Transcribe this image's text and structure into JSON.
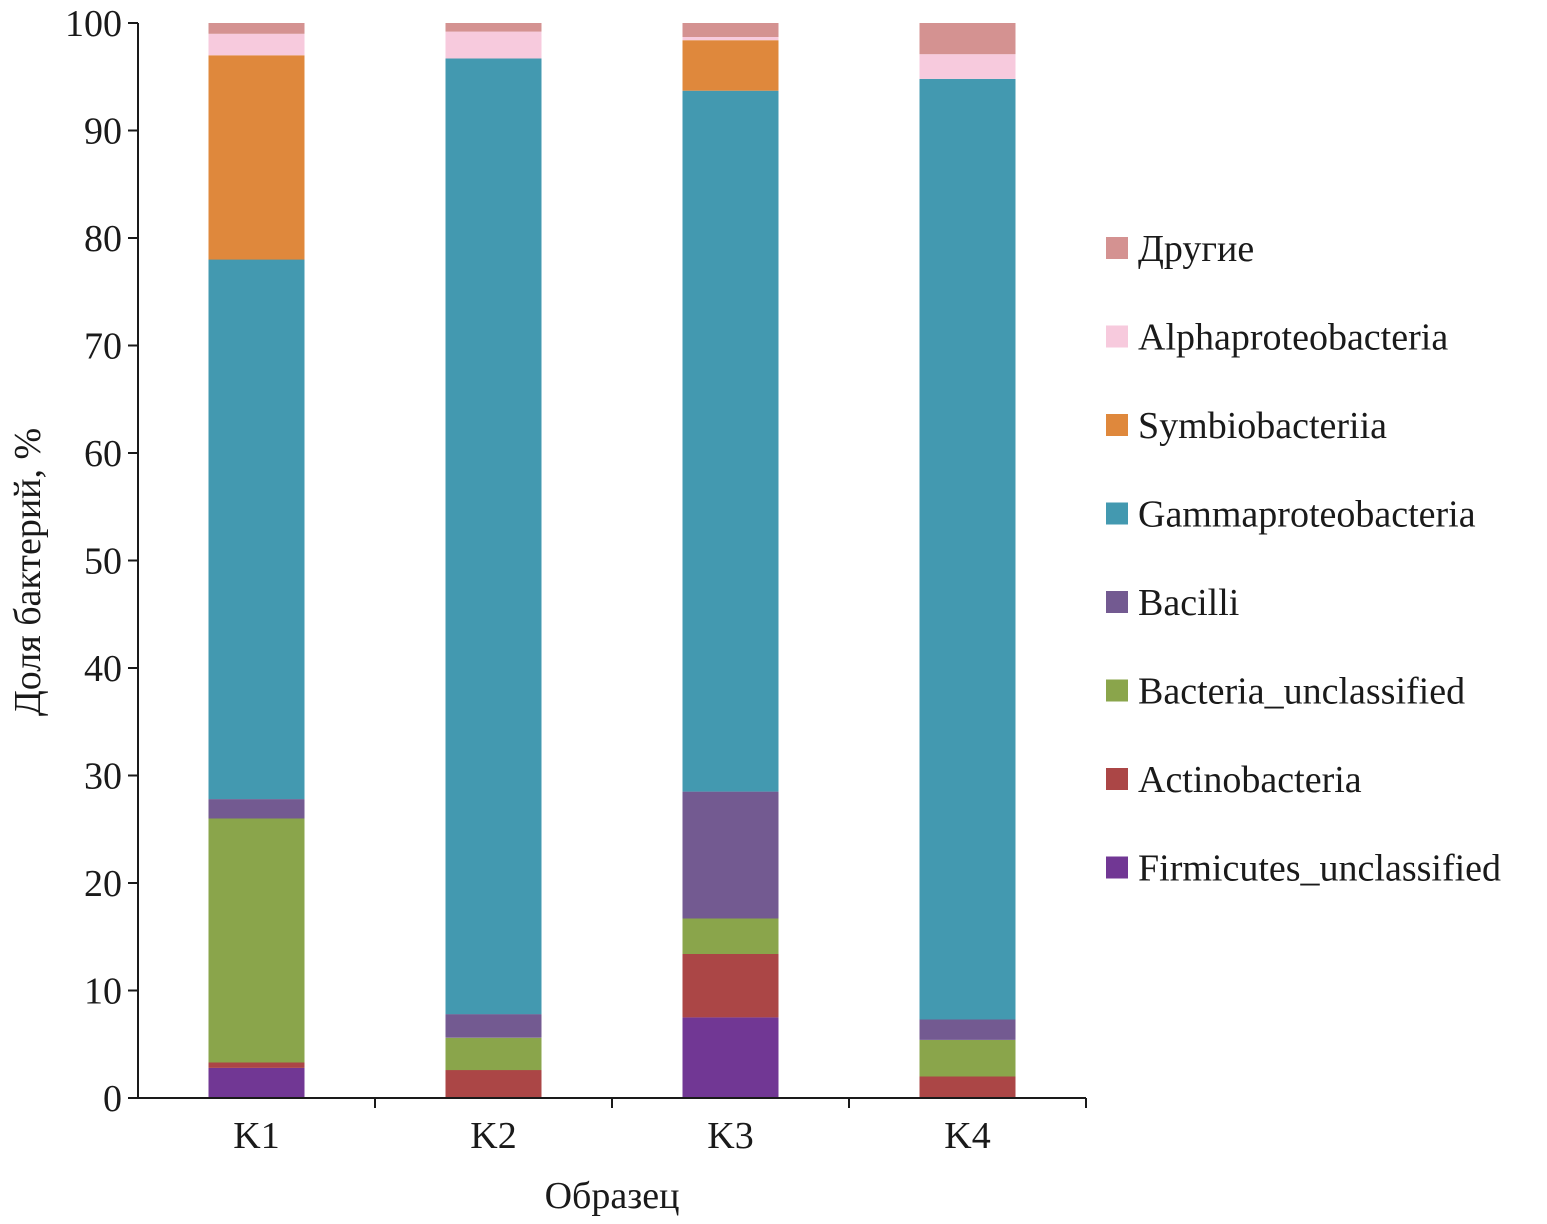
{
  "chart_data": {
    "type": "bar",
    "stacked": true,
    "title": "",
    "xlabel": "Образец",
    "ylabel": "Доля бактерий, %",
    "ylim": [
      0,
      100
    ],
    "yticks": [
      0,
      10,
      20,
      30,
      40,
      50,
      60,
      70,
      80,
      90,
      100
    ],
    "categories": [
      "K1",
      "K2",
      "K3",
      "K4"
    ],
    "legend_position": "right",
    "series": [
      {
        "name": "Firmicutes_unclassified",
        "color": "#713794",
        "values": [
          2.8,
          0,
          7.5,
          0
        ]
      },
      {
        "name": "Actinobacteria",
        "color": "#ab4646",
        "values": [
          0.5,
          2.6,
          5.9,
          2.0
        ]
      },
      {
        "name": "Bacteria_unclassified",
        "color": "#8aa54b",
        "values": [
          22.7,
          3.0,
          3.3,
          3.4
        ]
      },
      {
        "name": "Bacilli",
        "color": "#735a91",
        "values": [
          1.8,
          2.2,
          11.8,
          1.9
        ]
      },
      {
        "name": "Gammaproteobacteria",
        "color": "#4399b0",
        "values": [
          50.2,
          88.9,
          65.2,
          87.5
        ]
      },
      {
        "name": "Symbiobacteriia",
        "color": "#df883c",
        "values": [
          19.0,
          0,
          4.7,
          0
        ]
      },
      {
        "name": "Alphaproteobacteria",
        "color": "#f7cadd",
        "values": [
          2.0,
          2.5,
          0.3,
          2.3
        ]
      },
      {
        "name": "Другие",
        "color": "#d49291",
        "values": [
          1.0,
          0.8,
          1.3,
          2.9
        ]
      }
    ]
  }
}
